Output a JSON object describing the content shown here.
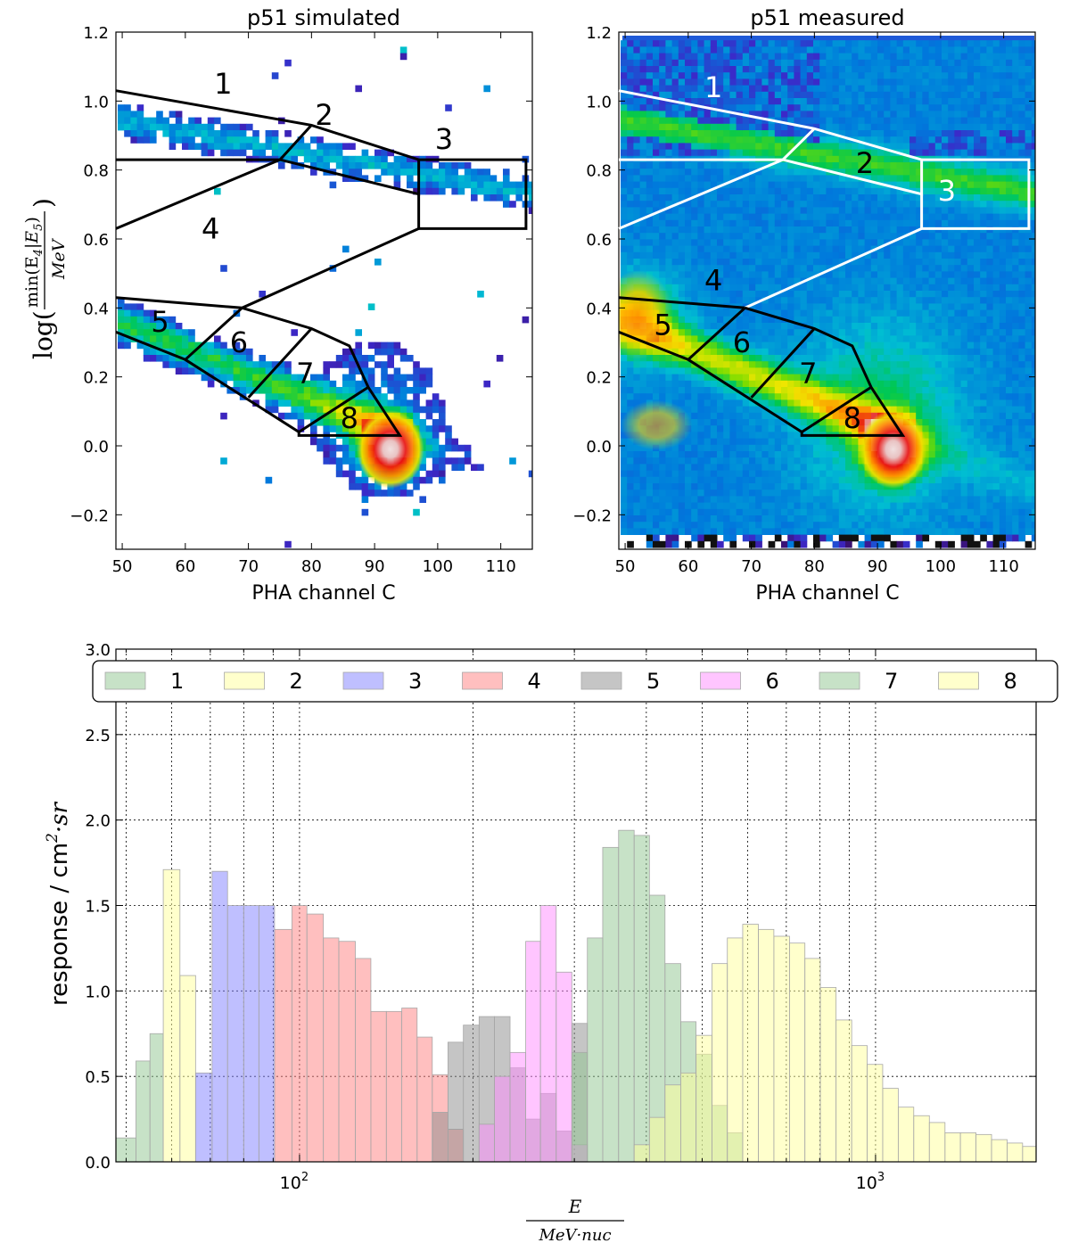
{
  "chart_data": [
    {
      "type": "heatmap",
      "title": "p51 simulated",
      "xlabel": "PHA channel C",
      "ylabel": "log(min(E4|E5)/MeV)",
      "ylabel_parts": {
        "pre": "log(",
        "num": "min(E",
        "num_sub1": "4",
        "num_mid": "|E",
        "num_sub2": "5",
        "num_post": ")",
        "den": "MeV",
        "post": ")"
      },
      "xlim": [
        49,
        115
      ],
      "ylim": [
        -0.3,
        1.2
      ],
      "xticks": [
        50,
        60,
        70,
        80,
        90,
        100,
        110
      ],
      "yticks": [
        -0.2,
        0.0,
        0.2,
        0.4,
        0.6,
        0.8,
        1.0,
        1.2
      ],
      "ytick_labels": [
        "−0.2",
        "0.0",
        "0.2",
        "0.4",
        "0.6",
        "0.8",
        "1.0",
        "1.2"
      ],
      "density_features": [
        {
          "name": "peak",
          "x": 92,
          "y": 0.0,
          "level": "max"
        },
        {
          "name": "proton band",
          "from": [
            50,
            0.36
          ],
          "to": [
            92,
            0.05
          ]
        },
        {
          "name": "upper band",
          "from": [
            50,
            0.95
          ],
          "to": [
            112,
            0.75
          ]
        }
      ],
      "region_labels": [
        {
          "id": "1",
          "x": 66,
          "y": 1.05
        },
        {
          "id": "2",
          "x": 82,
          "y": 0.96
        },
        {
          "id": "3",
          "x": 101,
          "y": 0.89
        },
        {
          "id": "4",
          "x": 64,
          "y": 0.63
        },
        {
          "id": "5",
          "x": 56,
          "y": 0.36
        },
        {
          "id": "6",
          "x": 68.5,
          "y": 0.3
        },
        {
          "id": "7",
          "x": 79,
          "y": 0.21
        },
        {
          "id": "8",
          "x": 86,
          "y": 0.08
        }
      ],
      "region_boundaries": [
        {
          "points": [
            [
              49,
              1.03
            ],
            [
              80,
              0.93
            ],
            [
              97,
              0.83
            ],
            [
              97,
              0.73
            ],
            [
              75,
              0.83
            ],
            [
              49,
              0.83
            ]
          ],
          "color": "black"
        },
        {
          "points": [
            [
              80,
              0.93
            ],
            [
              75,
              0.83
            ],
            [
              49,
              0.63
            ]
          ],
          "color": "black"
        },
        {
          "points": [
            [
              97,
              0.83
            ],
            [
              114,
              0.83
            ],
            [
              114,
              0.63
            ],
            [
              97,
              0.63
            ],
            [
              97,
              0.73
            ]
          ],
          "color": "black"
        },
        {
          "points": [
            [
              97,
              0.63
            ],
            [
              69,
              0.4
            ],
            [
              49,
              0.43
            ]
          ],
          "color": "black"
        },
        {
          "points": [
            [
              49,
              0.33
            ],
            [
              60,
              0.25
            ],
            [
              69,
              0.4
            ]
          ],
          "color": "black"
        },
        {
          "points": [
            [
              60,
              0.25
            ],
            [
              78,
              0.04
            ],
            [
              78,
              0.03
            ],
            [
              94,
              0.03
            ],
            [
              89,
              0.17
            ],
            [
              86,
              0.29
            ],
            [
              80,
              0.34
            ],
            [
              69,
              0.4
            ]
          ],
          "color": "black"
        },
        {
          "points": [
            [
              70,
              0.14
            ],
            [
              80,
              0.34
            ]
          ],
          "color": "black"
        },
        {
          "points": [
            [
              78,
              0.04
            ],
            [
              89,
              0.17
            ]
          ],
          "color": "black"
        }
      ]
    },
    {
      "type": "heatmap",
      "title": "p51 measured",
      "xlabel": "PHA channel C",
      "xlim": [
        49,
        115
      ],
      "ylim": [
        -0.3,
        1.2
      ],
      "xticks": [
        50,
        60,
        70,
        80,
        90,
        100,
        110
      ],
      "yticks": [
        -0.2,
        0.0,
        0.2,
        0.4,
        0.6,
        0.8,
        1.0,
        1.2
      ],
      "ytick_labels": [
        "−0.2",
        "0.0",
        "0.2",
        "0.4",
        "0.6",
        "0.8",
        "1.0",
        "1.2"
      ],
      "density_features": [
        {
          "name": "peak",
          "x": 92,
          "y": 0.0,
          "level": "max"
        },
        {
          "name": "low-channel hotspot",
          "x": 52,
          "y": 0.35,
          "level": "high"
        },
        {
          "name": "upper band",
          "from": [
            50,
            0.95
          ],
          "to": [
            112,
            0.75
          ]
        }
      ],
      "region_labels": [
        {
          "id": "1",
          "x": 64,
          "y": 1.04,
          "color": "white"
        },
        {
          "id": "2",
          "x": 88,
          "y": 0.82,
          "color": "black"
        },
        {
          "id": "3",
          "x": 101,
          "y": 0.74,
          "color": "white"
        },
        {
          "id": "4",
          "x": 64,
          "y": 0.48,
          "color": "black"
        },
        {
          "id": "5",
          "x": 56,
          "y": 0.35,
          "color": "black"
        },
        {
          "id": "6",
          "x": 68.5,
          "y": 0.3,
          "color": "black"
        },
        {
          "id": "7",
          "x": 79,
          "y": 0.21,
          "color": "black"
        },
        {
          "id": "8",
          "x": 86,
          "y": 0.08,
          "color": "black"
        }
      ],
      "region_boundaries": [
        {
          "points": [
            [
              49,
              1.03
            ],
            [
              80,
              0.92
            ],
            [
              97,
              0.83
            ],
            [
              97,
              0.73
            ],
            [
              75,
              0.83
            ],
            [
              49,
              0.83
            ]
          ],
          "color": "white"
        },
        {
          "points": [
            [
              80,
              0.92
            ],
            [
              75,
              0.83
            ],
            [
              49,
              0.63
            ]
          ],
          "color": "white"
        },
        {
          "points": [
            [
              97,
              0.83
            ],
            [
              114,
              0.83
            ],
            [
              114,
              0.63
            ],
            [
              97,
              0.63
            ],
            [
              97,
              0.73
            ]
          ],
          "color": "white"
        },
        {
          "points": [
            [
              97,
              0.63
            ],
            [
              69,
              0.4
            ]
          ],
          "color": "white"
        },
        {
          "points": [
            [
              69,
              0.4
            ],
            [
              49,
              0.43
            ]
          ],
          "color": "black"
        },
        {
          "points": [
            [
              49,
              0.33
            ],
            [
              60,
              0.25
            ],
            [
              69,
              0.4
            ]
          ],
          "color": "black"
        },
        {
          "points": [
            [
              60,
              0.25
            ],
            [
              78,
              0.04
            ],
            [
              78,
              0.03
            ],
            [
              94,
              0.03
            ],
            [
              89,
              0.17
            ],
            [
              86,
              0.29
            ],
            [
              80,
              0.34
            ],
            [
              69,
              0.4
            ]
          ],
          "color": "black"
        },
        {
          "points": [
            [
              70,
              0.14
            ],
            [
              80,
              0.34
            ]
          ],
          "color": "black"
        },
        {
          "points": [
            [
              78,
              0.04
            ],
            [
              89,
              0.17
            ]
          ],
          "color": "black"
        }
      ]
    },
    {
      "type": "bar",
      "title": "",
      "xlabel_num": "E",
      "xlabel_den": "MeV·nuc",
      "ylabel": "response / cm",
      "ylabel_sup": "2",
      "ylabel_post": "·sr",
      "xscale": "log",
      "xlim": [
        48,
        1900
      ],
      "ylim": [
        0,
        3.0
      ],
      "yticks": [
        0.0,
        0.5,
        1.0,
        1.5,
        2.0,
        2.5,
        3.0
      ],
      "xtick_labels": [
        {
          "base": "10",
          "exp": "2",
          "value": 100
        },
        {
          "base": "10",
          "exp": "3",
          "value": 1000
        }
      ],
      "legend_position": "top",
      "series": [
        {
          "name": "1",
          "color": "#8fc68f",
          "edges": [
            48,
            52,
            55,
            58
          ],
          "values": [
            0.14,
            0.59,
            0.75
          ]
        },
        {
          "name": "2",
          "color": "#ffff99",
          "edges": [
            58,
            62,
            66
          ],
          "values": [
            1.71,
            1.09
          ]
        },
        {
          "name": "3",
          "color": "#7f7fff",
          "edges": [
            66,
            70.5,
            75,
            80,
            85,
            90.5
          ],
          "values": [
            0.52,
            1.7,
            1.5,
            1.5,
            1.5
          ]
        },
        {
          "name": "4",
          "color": "#ff7f7f",
          "edges": [
            90.5,
            97,
            103,
            110,
            117,
            125,
            133,
            141.5,
            150.5,
            160,
            170,
            181,
            192.5
          ],
          "values": [
            1.36,
            1.5,
            1.45,
            1.31,
            1.29,
            1.19,
            0.88,
            0.88,
            0.9,
            0.73,
            0.51,
            0.19
          ]
        },
        {
          "name": "5",
          "color": "#8c8c8c",
          "edges": [
            170,
            181,
            192.5,
            205,
            218,
            232,
            247,
            262,
            279,
            297,
            316
          ],
          "values": [
            0.29,
            0.7,
            0.8,
            0.85,
            0.85,
            0.55,
            0.25,
            0.4,
            0.18,
            0.81
          ]
        },
        {
          "name": "6",
          "color": "#ff8cff",
          "edges": [
            205,
            218,
            232,
            247,
            262,
            279,
            297,
            316
          ],
          "values": [
            0.22,
            0.5,
            0.64,
            1.29,
            1.5,
            1.11,
            0.1
          ]
        },
        {
          "name": "7",
          "color": "#8fc68f",
          "edges": [
            297,
            316,
            336,
            358,
            381,
            405,
            431,
            459,
            488,
            520,
            553,
            588
          ],
          "values": [
            0.64,
            1.31,
            1.84,
            1.94,
            1.91,
            1.56,
            1.16,
            0.82,
            0.63,
            0.33,
            0.17
          ]
        },
        {
          "name": "8",
          "color": "#ffff99",
          "edges": [
            381,
            405,
            431,
            459,
            488,
            520,
            553,
            588,
            626,
            666,
            709,
            754,
            802,
            854,
            909,
            967,
            1029,
            1095,
            1165,
            1240,
            1320,
            1404,
            1494,
            1590,
            1692,
            1800,
            1900
          ],
          "values": [
            0.1,
            0.26,
            0.45,
            0.52,
            0.74,
            1.16,
            1.31,
            1.39,
            1.36,
            1.32,
            1.28,
            1.19,
            1.02,
            0.83,
            0.68,
            0.57,
            0.43,
            0.32,
            0.27,
            0.23,
            0.17,
            0.17,
            0.16,
            0.13,
            0.11,
            0.09
          ]
        }
      ]
    }
  ]
}
